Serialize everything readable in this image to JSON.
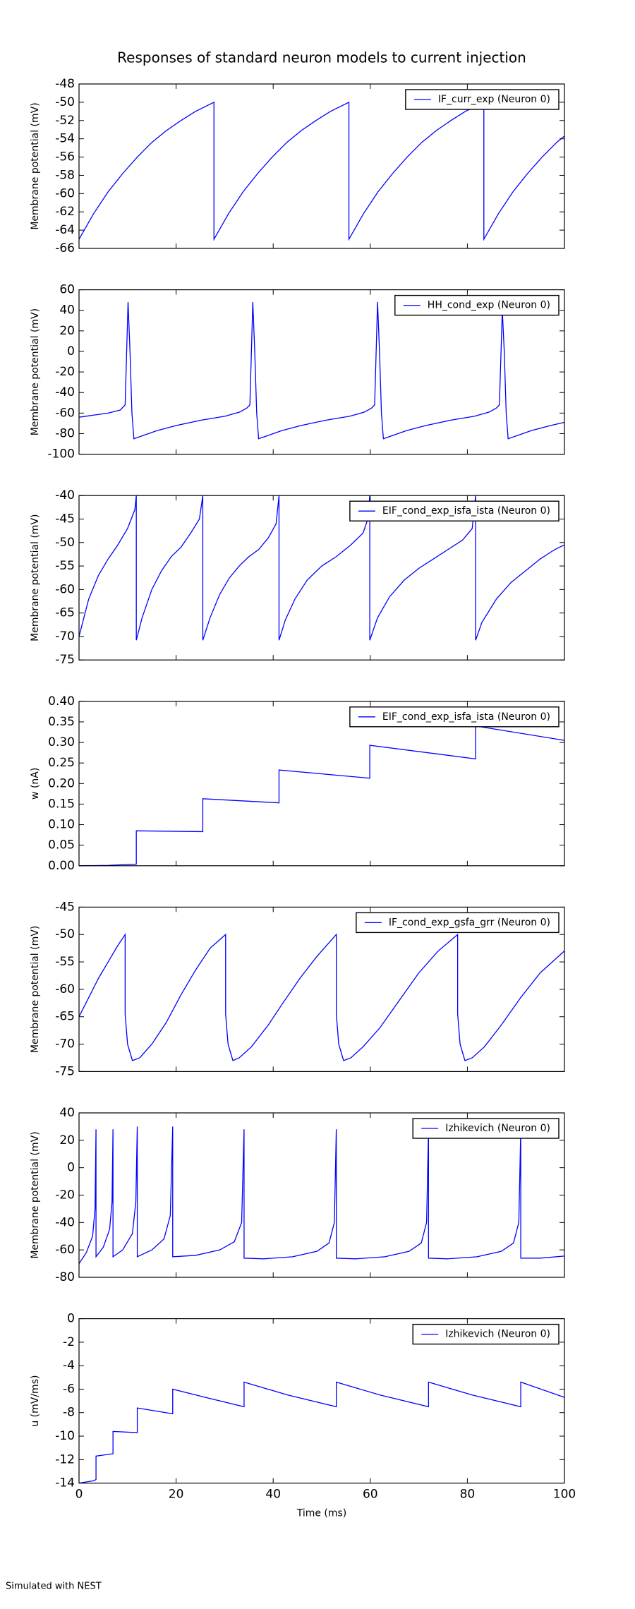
{
  "title": "Responses of standard neuron models to current injection",
  "footer": "Simulated with NEST",
  "chart_data": [
    {
      "type": "line",
      "ylabel": "Membrane potential (mV)",
      "legend": "upper right",
      "xlim": [
        0,
        100
      ],
      "xticks": [
        0,
        20,
        40,
        60,
        80,
        100
      ],
      "ylim": [
        -66,
        -48
      ],
      "yticks": [
        -66,
        -64,
        -62,
        -60,
        -58,
        -56,
        -54,
        -52,
        -50,
        -48
      ],
      "x": [
        0,
        3,
        6,
        9,
        12,
        15,
        18,
        21,
        24,
        27.8,
        27.8,
        30.8,
        33.8,
        36.8,
        39.8,
        42.8,
        45.8,
        48.8,
        51.8,
        55.6,
        55.6,
        58.6,
        61.6,
        64.6,
        67.6,
        70.6,
        73.6,
        76.6,
        79.6,
        83.4,
        83.4,
        86.4,
        89.4,
        92.4,
        95.4,
        98.4,
        100
      ],
      "series": [
        {
          "name": "IF_curr_exp (Neuron 0)",
          "color": "#0000ff",
          "values": [
            -65,
            -62.2,
            -59.8,
            -57.8,
            -56.0,
            -54.4,
            -53.1,
            -52.0,
            -51.0,
            -50.0,
            -65,
            -62.2,
            -59.8,
            -57.8,
            -56.0,
            -54.4,
            -53.1,
            -52.0,
            -51.0,
            -50.0,
            -65,
            -62.2,
            -59.8,
            -57.8,
            -56.0,
            -54.4,
            -53.1,
            -52.0,
            -51.0,
            -50.0,
            -65,
            -62.2,
            -59.8,
            -57.8,
            -56.0,
            -54.4,
            -53.7
          ]
        }
      ]
    },
    {
      "type": "line",
      "ylabel": "Membrane potential (mV)",
      "legend": "upper right",
      "xlim": [
        0,
        100
      ],
      "xticks": [
        0,
        20,
        40,
        60,
        80,
        100
      ],
      "ylim": [
        -100,
        60
      ],
      "yticks": [
        -100,
        -80,
        -60,
        -40,
        -20,
        0,
        20,
        40,
        60
      ],
      "x": [
        0,
        3,
        6,
        8.5,
        9.5,
        10.1,
        10.5,
        10.9,
        11.3,
        13.1,
        16.1,
        20.1,
        25.1,
        30.1,
        33.1,
        34.6,
        35.2,
        35.8,
        36.2,
        36.6,
        37.0,
        38.8,
        41.8,
        45.8,
        50.8,
        55.8,
        58.8,
        60.3,
        60.9,
        61.5,
        61.9,
        62.3,
        62.7,
        64.5,
        67.5,
        71.5,
        76.5,
        81.5,
        84.5,
        86,
        86.6,
        87.2,
        87.6,
        88,
        88.4,
        90.2,
        93.2,
        97.2,
        100
      ],
      "series": [
        {
          "name": "HH_cond_exp (Neuron 0)",
          "color": "#0000ff",
          "values": [
            -64,
            -62,
            -60,
            -57,
            -52,
            48,
            0,
            -60,
            -85,
            -82,
            -77,
            -72,
            -67,
            -63,
            -59,
            -55,
            -52,
            48,
            0,
            -60,
            -85,
            -82,
            -77,
            -72,
            -67,
            -63,
            -59,
            -55,
            -52,
            48,
            0,
            -60,
            -85,
            -82,
            -77,
            -72,
            -67,
            -63,
            -59,
            -55,
            -52,
            40,
            0,
            -60,
            -85,
            -82,
            -77,
            -72,
            -69
          ]
        }
      ]
    },
    {
      "type": "line",
      "ylabel": "Membrane potential (mV)",
      "legend": "upper right",
      "xlim": [
        0,
        100
      ],
      "xticks": [
        0,
        20,
        40,
        60,
        80,
        100
      ],
      "ylim": [
        -75,
        -40
      ],
      "yticks": [
        -75,
        -70,
        -65,
        -60,
        -55,
        -50,
        -45,
        -40
      ],
      "x": [
        0,
        2,
        4,
        6,
        8,
        10,
        11.5,
        11.8,
        11.8,
        13,
        15,
        17,
        19,
        21,
        23,
        24.8,
        25.5,
        25.5,
        27,
        29,
        31,
        33,
        35,
        37,
        39,
        40.6,
        41.2,
        41.2,
        42.5,
        44.5,
        47,
        50,
        53,
        56,
        58.5,
        59.5,
        59.9,
        59.9,
        61.5,
        64,
        67,
        70,
        73,
        76,
        79,
        81,
        81.7,
        81.7,
        83,
        86,
        89,
        92,
        95,
        98,
        100
      ],
      "series": [
        {
          "name": "EIF_cond_exp_isfa_ista (Neuron 0)",
          "color": "#0000ff",
          "values": [
            -70,
            -62,
            -57,
            -53.5,
            -50.5,
            -47,
            -43,
            -40,
            -70.8,
            -66,
            -60,
            -56,
            -53,
            -51,
            -48,
            -45,
            -40,
            -70.8,
            -66,
            -61,
            -57.5,
            -55,
            -53,
            -51.5,
            -49,
            -46,
            -40,
            -70.8,
            -66.5,
            -62,
            -58,
            -55,
            -53,
            -50.5,
            -48,
            -45,
            -40,
            -70.8,
            -66,
            -61.5,
            -58,
            -55.5,
            -53.5,
            -51.5,
            -49.5,
            -47,
            -40,
            -70.8,
            -67,
            -62,
            -58.5,
            -56,
            -53.5,
            -51.5,
            -50.5
          ]
        }
      ]
    },
    {
      "type": "line",
      "ylabel": "w (nA)",
      "legend": "upper right",
      "xlim": [
        0,
        100
      ],
      "xticks": [
        0,
        20,
        40,
        60,
        80,
        100
      ],
      "ylim": [
        0,
        0.4
      ],
      "yticks": [
        {
          "value": 0,
          "label": "0.00"
        },
        {
          "value": 0.05,
          "label": "0.05"
        },
        {
          "value": 0.1,
          "label": "0.10"
        },
        {
          "value": 0.15,
          "label": "0.15"
        },
        {
          "value": 0.2,
          "label": "0.20"
        },
        {
          "value": 0.25,
          "label": "0.25"
        },
        {
          "value": 0.3,
          "label": "0.30"
        },
        {
          "value": 0.35,
          "label": "0.35"
        },
        {
          "value": 0.4,
          "label": "0.40"
        }
      ],
      "x": [
        0,
        6,
        11.8,
        11.8,
        25.5,
        25.5,
        41.2,
        41.2,
        59.9,
        59.9,
        81.7,
        81.7,
        100
      ],
      "series": [
        {
          "name": "EIF_cond_exp_isfa_ista (Neuron 0)",
          "color": "#0000ff",
          "values": [
            0,
            0.001,
            0.004,
            0.085,
            0.083,
            0.163,
            0.153,
            0.233,
            0.213,
            0.293,
            0.26,
            0.34,
            0.305
          ]
        }
      ]
    },
    {
      "type": "line",
      "ylabel": "Membrane potential (mV)",
      "legend": "upper right",
      "xlim": [
        0,
        100
      ],
      "xticks": [
        0,
        20,
        40,
        60,
        80,
        100
      ],
      "ylim": [
        -75,
        -45
      ],
      "yticks": [
        -75,
        -70,
        -65,
        -60,
        -55,
        -50,
        -45
      ],
      "x": [
        0,
        2,
        4,
        6,
        8,
        9.5,
        9.5,
        10,
        11,
        12.5,
        15,
        18,
        21,
        24,
        27,
        30.2,
        30.2,
        30.7,
        31.7,
        33,
        35.5,
        39,
        42,
        45.5,
        49,
        53,
        53,
        53.5,
        54.5,
        56,
        58.5,
        62,
        66,
        70,
        74,
        78,
        78,
        78.5,
        79.5,
        81,
        83.5,
        87,
        91,
        95,
        100
      ],
      "series": [
        {
          "name": "IF_cond_exp_gsfa_grr (Neuron 0)",
          "color": "#0000ff",
          "values": [
            -65,
            -61.5,
            -58,
            -55,
            -52,
            -50,
            -64.5,
            -70,
            -73,
            -72.5,
            -70,
            -66,
            -61,
            -56.5,
            -52.5,
            -50,
            -64.5,
            -70,
            -73,
            -72.5,
            -70.5,
            -66.5,
            -62.5,
            -58,
            -54,
            -50,
            -64.5,
            -70,
            -73,
            -72.5,
            -70.5,
            -67,
            -62,
            -57,
            -53,
            -50,
            -64.5,
            -70,
            -73,
            -72.5,
            -70.5,
            -66.5,
            -61.5,
            -57,
            -53
          ]
        }
      ]
    },
    {
      "type": "line",
      "ylabel": "Membrane potential (mV)",
      "legend": "upper right",
      "xlim": [
        0,
        100
      ],
      "xticks": [
        0,
        20,
        40,
        60,
        80,
        100
      ],
      "ylim": [
        -80,
        40
      ],
      "yticks": [
        -80,
        -60,
        -40,
        -20,
        0,
        20,
        40
      ],
      "x": [
        0,
        1.5,
        2.8,
        3.3,
        3.5,
        3.5,
        5,
        6.3,
        6.8,
        7,
        7,
        9,
        11,
        11.7,
        12,
        12,
        15,
        17.5,
        18.8,
        19.3,
        19.3,
        24,
        29,
        32,
        33.5,
        34,
        34,
        38,
        44,
        49,
        51.5,
        52.6,
        53,
        53,
        57,
        63,
        68,
        70.5,
        71.6,
        72,
        72,
        76,
        82,
        87,
        89.5,
        90.6,
        91,
        91,
        95,
        100
      ],
      "series": [
        {
          "name": "Izhikevich (Neuron 0)",
          "color": "#0000ff",
          "values": [
            -70,
            -62,
            -50,
            -30,
            28,
            -65,
            -58,
            -45,
            -25,
            28,
            -65,
            -60,
            -48,
            -25,
            30,
            -65,
            -60,
            -52,
            -35,
            30,
            -65,
            -64,
            -60,
            -54,
            -40,
            28,
            -66,
            -66.5,
            -65,
            -61,
            -55,
            -40,
            28,
            -66,
            -66.5,
            -65,
            -61,
            -55,
            -40,
            28,
            -66,
            -66.5,
            -65,
            -61,
            -55,
            -40,
            28,
            -66,
            -66,
            -64.5
          ]
        }
      ]
    },
    {
      "type": "line",
      "ylabel": "u (mV/ms)",
      "xlabel": "Time (ms)",
      "legend": "upper right",
      "xlim": [
        0,
        100
      ],
      "xticks": [
        0,
        20,
        40,
        60,
        80,
        100
      ],
      "ylim": [
        -14,
        0
      ],
      "yticks": [
        -14,
        -12,
        -10,
        -8,
        -6,
        -4,
        -2,
        0
      ],
      "x": [
        0,
        3,
        3.5,
        3.5,
        7,
        7,
        12,
        12,
        19.3,
        19.3,
        27,
        34,
        34,
        43,
        53,
        53,
        62,
        72,
        72,
        81,
        91,
        91,
        100
      ],
      "series": [
        {
          "name": "Izhikevich (Neuron 0)",
          "color": "#0000ff",
          "values": [
            -14,
            -13.8,
            -13.7,
            -11.7,
            -11.5,
            -9.6,
            -9.7,
            -7.6,
            -8.1,
            -6,
            -6.8,
            -7.5,
            -5.4,
            -6.5,
            -7.5,
            -5.4,
            -6.5,
            -7.5,
            -5.4,
            -6.5,
            -7.5,
            -5.4,
            -6.7
          ]
        }
      ]
    }
  ]
}
